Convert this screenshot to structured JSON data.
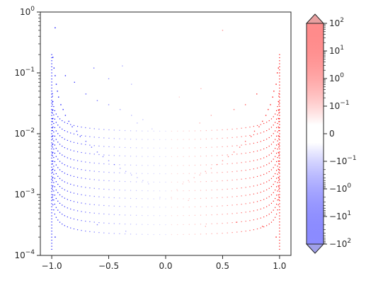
{
  "chart_data": {
    "type": "scatter",
    "title": "",
    "xlabel": "",
    "ylabel": "",
    "xlim": [
      -1.1,
      1.1
    ],
    "ylim": [
      0.0001,
      1
    ],
    "yscale": "log",
    "grid": false,
    "x_ticks": [
      {
        "value": -1.0,
        "label": "−1.0"
      },
      {
        "value": -0.5,
        "label": "−0.5"
      },
      {
        "value": 0.0,
        "label": "0.0"
      },
      {
        "value": 0.5,
        "label": "0.5"
      },
      {
        "value": 1.0,
        "label": "1.0"
      }
    ],
    "y_ticks": [
      {
        "value": 0.0001,
        "base": "10",
        "exp": "−4"
      },
      {
        "value": 0.001,
        "base": "10",
        "exp": "−3"
      },
      {
        "value": 0.01,
        "base": "10",
        "exp": "−2"
      },
      {
        "value": 0.1,
        "base": "10",
        "exp": "−1"
      },
      {
        "value": 1,
        "base": "10",
        "exp": "0"
      }
    ],
    "color_encoding": "point color maps x value on a symmetric-log colorbar (blue negative, white 0, red positive)",
    "curves": {
      "description": "families of arc-shaped point curves y = c·sqrt(1 − x²) running from x = −1 to x = 1",
      "coefficients": [
        0.00022,
        0.00032,
        0.00045,
        0.00062,
        0.00085,
        0.00115,
        0.0016,
        0.0022,
        0.003,
        0.0042,
        0.0058,
        0.008,
        0.011
      ],
      "points_per_curve": 60
    },
    "scatter_points": [
      {
        "x": -0.99,
        "y": 0.18
      },
      {
        "x": -0.98,
        "y": 0.12
      },
      {
        "x": -0.97,
        "y": 0.09
      },
      {
        "x": -0.96,
        "y": 0.065
      },
      {
        "x": -0.95,
        "y": 0.05
      },
      {
        "x": -0.94,
        "y": 0.04
      },
      {
        "x": -0.92,
        "y": 0.03
      },
      {
        "x": -0.9,
        "y": 0.025
      },
      {
        "x": -0.88,
        "y": 0.02
      },
      {
        "x": -0.85,
        "y": 0.016
      },
      {
        "x": -0.82,
        "y": 0.013
      },
      {
        "x": -0.78,
        "y": 0.011
      },
      {
        "x": -0.75,
        "y": 0.009
      },
      {
        "x": -0.7,
        "y": 0.0075
      },
      {
        "x": -0.65,
        "y": 0.006
      },
      {
        "x": -0.6,
        "y": 0.005
      },
      {
        "x": -0.55,
        "y": 0.0042
      },
      {
        "x": -0.5,
        "y": 0.0036
      },
      {
        "x": -0.45,
        "y": 0.0031
      },
      {
        "x": -0.4,
        "y": 0.0027
      },
      {
        "x": -0.35,
        "y": 0.0024
      },
      {
        "x": -0.3,
        "y": 0.0021
      },
      {
        "x": -0.25,
        "y": 0.0019
      },
      {
        "x": -0.2,
        "y": 0.0017
      },
      {
        "x": -0.15,
        "y": 0.0015
      },
      {
        "x": -0.88,
        "y": 0.09
      },
      {
        "x": -0.8,
        "y": 0.07
      },
      {
        "x": -0.7,
        "y": 0.045
      },
      {
        "x": -0.6,
        "y": 0.035
      },
      {
        "x": -0.5,
        "y": 0.03
      },
      {
        "x": -0.4,
        "y": 0.025
      },
      {
        "x": -0.3,
        "y": 0.02
      },
      {
        "x": -0.2,
        "y": 0.017
      },
      {
        "x": -0.63,
        "y": 0.12
      },
      {
        "x": -0.5,
        "y": 0.08
      },
      {
        "x": -0.3,
        "y": 0.065
      },
      {
        "x": -0.38,
        "y": 0.13
      },
      {
        "x": -0.25,
        "y": 0.015
      },
      {
        "x": -0.12,
        "y": 0.012
      },
      {
        "x": -0.05,
        "y": 0.0009
      },
      {
        "x": -0.35,
        "y": 0.00025
      },
      {
        "x": -0.6,
        "y": 0.00032
      },
      {
        "x": 0.05,
        "y": 0.0009
      },
      {
        "x": 0.1,
        "y": 0.0012
      },
      {
        "x": 0.15,
        "y": 0.0015
      },
      {
        "x": 0.2,
        "y": 0.0017
      },
      {
        "x": 0.25,
        "y": 0.0019
      },
      {
        "x": 0.3,
        "y": 0.0021
      },
      {
        "x": 0.35,
        "y": 0.0024
      },
      {
        "x": 0.4,
        "y": 0.0027
      },
      {
        "x": 0.45,
        "y": 0.0031
      },
      {
        "x": 0.5,
        "y": 0.0036
      },
      {
        "x": 0.55,
        "y": 0.0042
      },
      {
        "x": 0.6,
        "y": 0.005
      },
      {
        "x": 0.65,
        "y": 0.006
      },
      {
        "x": 0.7,
        "y": 0.0075
      },
      {
        "x": 0.75,
        "y": 0.009
      },
      {
        "x": 0.78,
        "y": 0.011
      },
      {
        "x": 0.82,
        "y": 0.013
      },
      {
        "x": 0.85,
        "y": 0.016
      },
      {
        "x": 0.88,
        "y": 0.02
      },
      {
        "x": 0.9,
        "y": 0.025
      },
      {
        "x": 0.92,
        "y": 0.03
      },
      {
        "x": 0.94,
        "y": 0.04
      },
      {
        "x": 0.95,
        "y": 0.05
      },
      {
        "x": 0.97,
        "y": 0.065
      },
      {
        "x": 0.98,
        "y": 0.1
      },
      {
        "x": 0.99,
        "y": 0.12
      },
      {
        "x": 0.31,
        "y": 0.055
      },
      {
        "x": 0.5,
        "y": 0.5
      },
      {
        "x": 0.3,
        "y": 0.015
      },
      {
        "x": 0.4,
        "y": 0.02
      },
      {
        "x": 0.6,
        "y": 0.025
      },
      {
        "x": 0.7,
        "y": 0.03
      },
      {
        "x": 0.8,
        "y": 0.045
      },
      {
        "x": 0.12,
        "y": 0.04
      },
      {
        "x": 0.2,
        "y": 0.0008
      },
      {
        "x": 0.35,
        "y": 0.0003
      },
      {
        "x": 0.62,
        "y": 0.00035
      },
      {
        "x": 0.85,
        "y": 0.0003
      },
      {
        "x": 0.97,
        "y": 0.0002
      },
      {
        "x": -0.97,
        "y": 0.55
      },
      {
        "x": -0.97,
        "y": 0.0002
      }
    ],
    "colorbar": {
      "scale": "symlog",
      "range": [
        -100,
        100
      ],
      "extend": "both",
      "colors": {
        "negative": "#0000ff",
        "zero": "#ffffff",
        "positive": "#ff0000"
      },
      "tick_labels": [
        {
          "value": 100,
          "base": "10",
          "exp": "2"
        },
        {
          "value": 10,
          "base": "10",
          "exp": "1"
        },
        {
          "value": 1,
          "base": "10",
          "exp": "0"
        },
        {
          "value": 0.1,
          "base": "10",
          "exp": "−1"
        },
        {
          "value": 0,
          "base": "0",
          "exp": ""
        },
        {
          "value": -0.1,
          "base": "−10",
          "exp": "−1"
        },
        {
          "value": -1,
          "base": "−10",
          "exp": "0"
        },
        {
          "value": -10,
          "base": "−10",
          "exp": "1"
        },
        {
          "value": -100,
          "base": "−10",
          "exp": "2"
        }
      ]
    }
  }
}
